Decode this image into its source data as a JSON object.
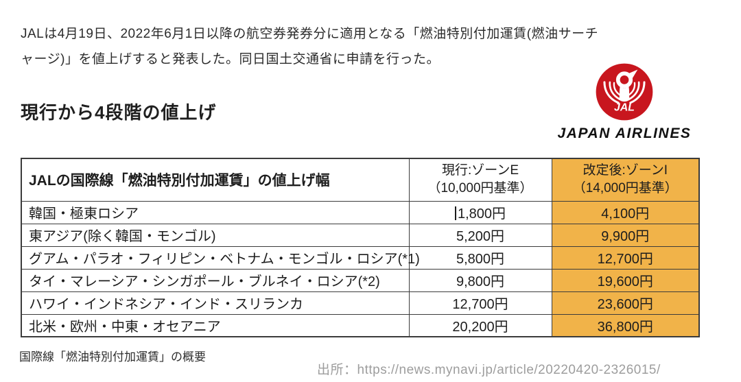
{
  "intro": {
    "line1": "JALは4月19日、2022年6月1日以降の航空券発券分に適用となる「燃油特別付加運賃(燃油サーチ",
    "line2": "ャージ)」を値上げすると発表した。同日国土交通省に申請を行った。"
  },
  "headline": "現行から4段階の値上げ",
  "logo": {
    "mark_text": "JAL",
    "wordmark": "JAPAN AIRLINES",
    "brand_red": "#c8161e"
  },
  "table": {
    "header": {
      "col1": "JALの国際線「燃油特別付加運賃」の値上げ幅",
      "col2_line1": "現行:ゾーンE",
      "col2_line2": "（10,000円基準）",
      "col3_line1": "改定後:ゾーンI",
      "col3_line2": "（14,000円基準）"
    },
    "rows": [
      {
        "label": "韓国・極東ロシア",
        "current": "1,800円",
        "revised": "4,100円",
        "caret": true
      },
      {
        "label": "東アジア(除く韓国・モンゴル)",
        "current": "5,200円",
        "revised": "9,900円"
      },
      {
        "label": "グアム・パラオ・フィリピン・ベトナム・モンゴル・ロシア(*1)",
        "current": "5,800円",
        "revised": "12,700円"
      },
      {
        "label": "タイ・マレーシア・シンガポール・ブルネイ・ロシア(*2)",
        "current": "9,800円",
        "revised": "19,600円"
      },
      {
        "label": "ハワイ・インドネシア・インド・スリランカ",
        "current": "12,700円",
        "revised": "23,600円"
      },
      {
        "label": "北米・欧州・中東・オセアニア",
        "current": "20,200円",
        "revised": "36,800円"
      }
    ],
    "highlight_color": "#f1b349"
  },
  "caption": "国際線「燃油特別付加運賃」の概要",
  "source": {
    "label": "出所：",
    "url": "https://news.mynavi.jp/article/20220420-2326015/",
    "text_color": "#9d9d9d"
  }
}
